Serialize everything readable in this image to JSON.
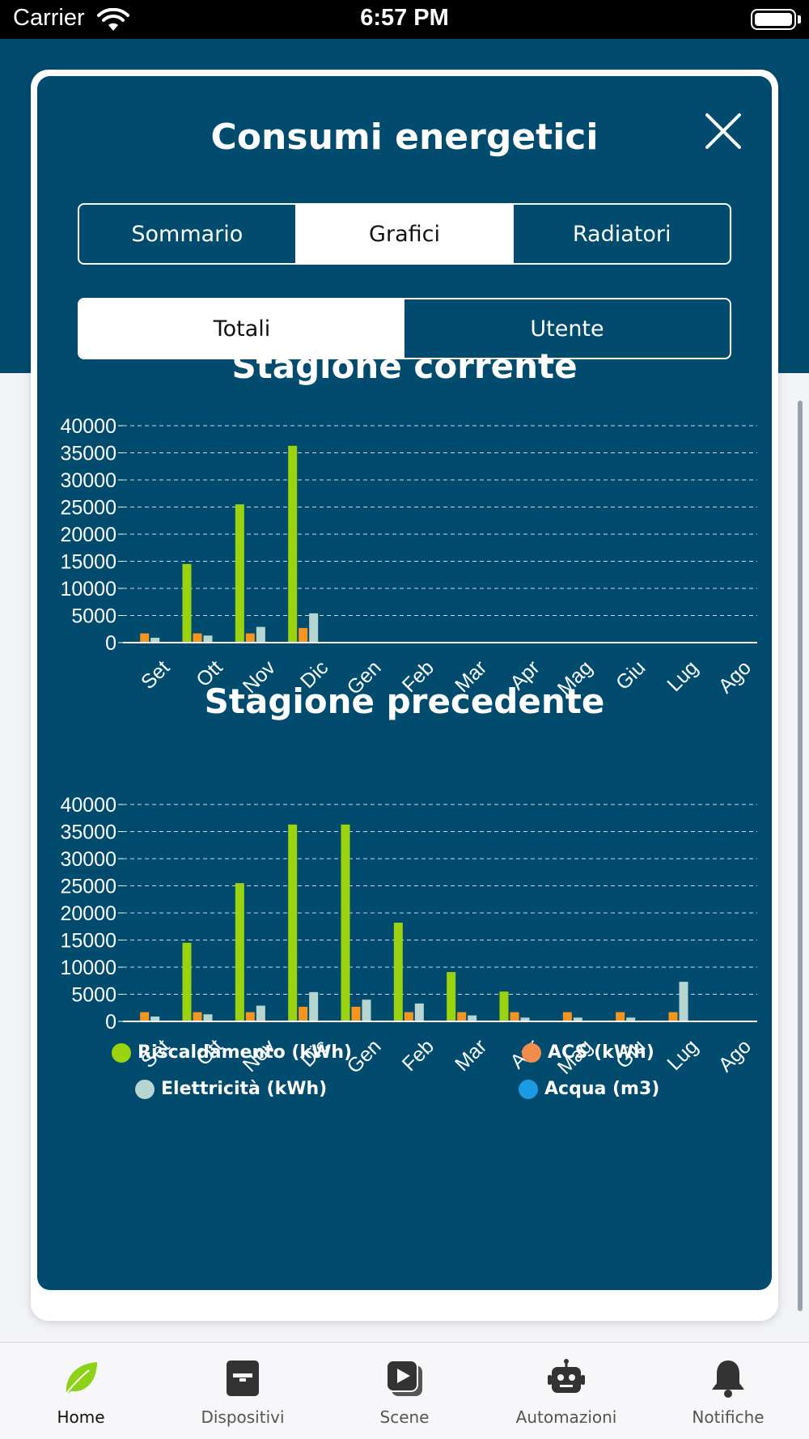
{
  "status_bar": {
    "carrier": "Carrier",
    "time": "6:57 PM"
  },
  "modal": {
    "title": "Consumi energetici",
    "tabs": [
      {
        "label": "Sommario",
        "active": false
      },
      {
        "label": "Grafici",
        "active": true
      },
      {
        "label": "Radiatori",
        "active": false
      }
    ],
    "subtabs": [
      {
        "label": "Totali",
        "active": true
      },
      {
        "label": "Utente",
        "active": false
      }
    ]
  },
  "legend": [
    {
      "label": "Riscaldamento (kWh)",
      "color": "#9bd30f"
    },
    {
      "label": "ACS (kWh)",
      "color": "#f28c4c"
    },
    {
      "label": "Elettricità (kWh)",
      "color": "#b7d6d2"
    },
    {
      "label": "Acqua (m3)",
      "color": "#1a9be3"
    }
  ],
  "chart_data": [
    {
      "type": "bar",
      "title": "Stagione corrente",
      "categories": [
        "Set",
        "Ott",
        "Nov",
        "Dic",
        "Gen",
        "Feb",
        "Mar",
        "Apr",
        "Mag",
        "Giu",
        "Lug",
        "Ago"
      ],
      "y_ticks": [
        "0",
        "5000",
        "10000",
        "15000",
        "20000",
        "25000",
        "30000",
        "35000",
        "40000"
      ],
      "ylim": [
        0,
        40000
      ],
      "grid": true,
      "series": [
        {
          "name": "Riscaldamento (kWh)",
          "color": "#9bd30f",
          "values": [
            0,
            14500,
            25500,
            36300,
            0,
            0,
            0,
            0,
            0,
            0,
            0,
            0
          ]
        },
        {
          "name": "ACS (kWh)",
          "color": "#f7941d",
          "values": [
            1700,
            1700,
            1700,
            2700,
            0,
            0,
            0,
            0,
            0,
            0,
            0,
            0
          ]
        },
        {
          "name": "Elettricità (kWh)",
          "color": "#b7d6d2",
          "values": [
            900,
            1300,
            2900,
            5400,
            0,
            0,
            0,
            0,
            0,
            0,
            0,
            0
          ]
        },
        {
          "name": "Acqua (m3)",
          "color": "#1a9be3",
          "values": [
            0,
            0,
            0,
            0,
            0,
            0,
            0,
            0,
            0,
            0,
            0,
            0
          ]
        }
      ]
    },
    {
      "type": "bar",
      "title": "Stagione precedente",
      "categories": [
        "Set",
        "Ott",
        "Nov",
        "Dic",
        "Gen",
        "Feb",
        "Mar",
        "Apr",
        "Mag",
        "Giu",
        "Lug",
        "Ago"
      ],
      "y_ticks": [
        "0",
        "5000",
        "10000",
        "15000",
        "20000",
        "25000",
        "30000",
        "35000",
        "40000"
      ],
      "ylim": [
        0,
        40000
      ],
      "grid": true,
      "series": [
        {
          "name": "Riscaldamento (kWh)",
          "color": "#9bd30f",
          "values": [
            0,
            14500,
            25500,
            36300,
            36300,
            18200,
            9100,
            5500,
            0,
            0,
            0,
            0
          ]
        },
        {
          "name": "ACS (kWh)",
          "color": "#f7941d",
          "values": [
            1700,
            1700,
            1700,
            2700,
            2700,
            1700,
            1700,
            1700,
            1700,
            1700,
            1700,
            0
          ]
        },
        {
          "name": "Elettricità (kWh)",
          "color": "#b7d6d2",
          "values": [
            900,
            1300,
            2900,
            5400,
            4000,
            3300,
            1100,
            700,
            700,
            700,
            7300,
            0
          ]
        },
        {
          "name": "Acqua (m3)",
          "color": "#1a9be3",
          "values": [
            0,
            0,
            0,
            0,
            0,
            0,
            0,
            0,
            0,
            0,
            0,
            0
          ]
        }
      ]
    }
  ],
  "tab_bar": [
    {
      "label": "Home",
      "icon": "leaf-icon",
      "active": true
    },
    {
      "label": "Dispositivi",
      "icon": "device-icon",
      "active": false
    },
    {
      "label": "Scene",
      "icon": "play-icon",
      "active": false
    },
    {
      "label": "Automazioni",
      "icon": "robot-icon",
      "active": false
    },
    {
      "label": "Notifiche",
      "icon": "bell-icon",
      "active": false
    }
  ]
}
